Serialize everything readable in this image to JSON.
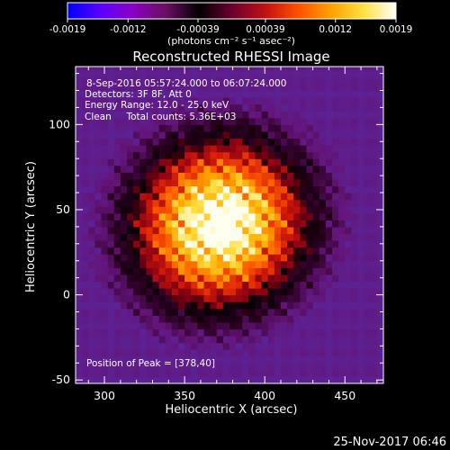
{
  "chart_data": {
    "type": "heatmap",
    "title": "Reconstructed RHESSI Image",
    "xlabel": "Heliocentric X (arcsec)",
    "ylabel": "Heliocentric Y (arcsec)",
    "xlim": [
      282,
      474
    ],
    "ylim": [
      -52,
      134
    ],
    "x_ticks": [
      300,
      350,
      400,
      450
    ],
    "y_ticks": [
      -50,
      0,
      50,
      100
    ],
    "colorbar": {
      "range": [
        -0.0019,
        0.0019
      ],
      "ticks": [
        {
          "value": -0.0019,
          "label": "-0.0019"
        },
        {
          "value": -0.0012,
          "label": "-0.0012"
        },
        {
          "value": -0.00039,
          "label": "-0.00039"
        },
        {
          "value": 0.00039,
          "label": "0.00039"
        },
        {
          "value": 0.0012,
          "label": "0.0012"
        },
        {
          "value": 0.0019,
          "label": "0.0019"
        }
      ],
      "unit_label": "(photons cm⁻² s⁻¹ asec⁻²)",
      "colors": [
        "#0000ff",
        "#5a00ff",
        "#8a00c0",
        "#6a1060",
        "#000000",
        "#6a0030",
        "#c01010",
        "#ff5000",
        "#ffa000",
        "#ffe040",
        "#ffffff"
      ]
    },
    "annotations": [
      "8-Sep-2016 05:57:24.000 to 06:07:24.000",
      "Detectors: 3F 8F, Att 0",
      "Energy Range: 12.0 - 25.0 keV",
      "Clean     Total counts: 5.36E+03"
    ],
    "peak_label": "Position of Peak = [378,40]",
    "peak": {
      "x": 378,
      "y": 40
    },
    "source": {
      "cx": 372,
      "cy": 42,
      "sx": 58,
      "sy": 52,
      "angle_deg": -15
    },
    "background_color": "#5a2aa0"
  },
  "footer_timestamp": "25-Nov-2017 06:46"
}
